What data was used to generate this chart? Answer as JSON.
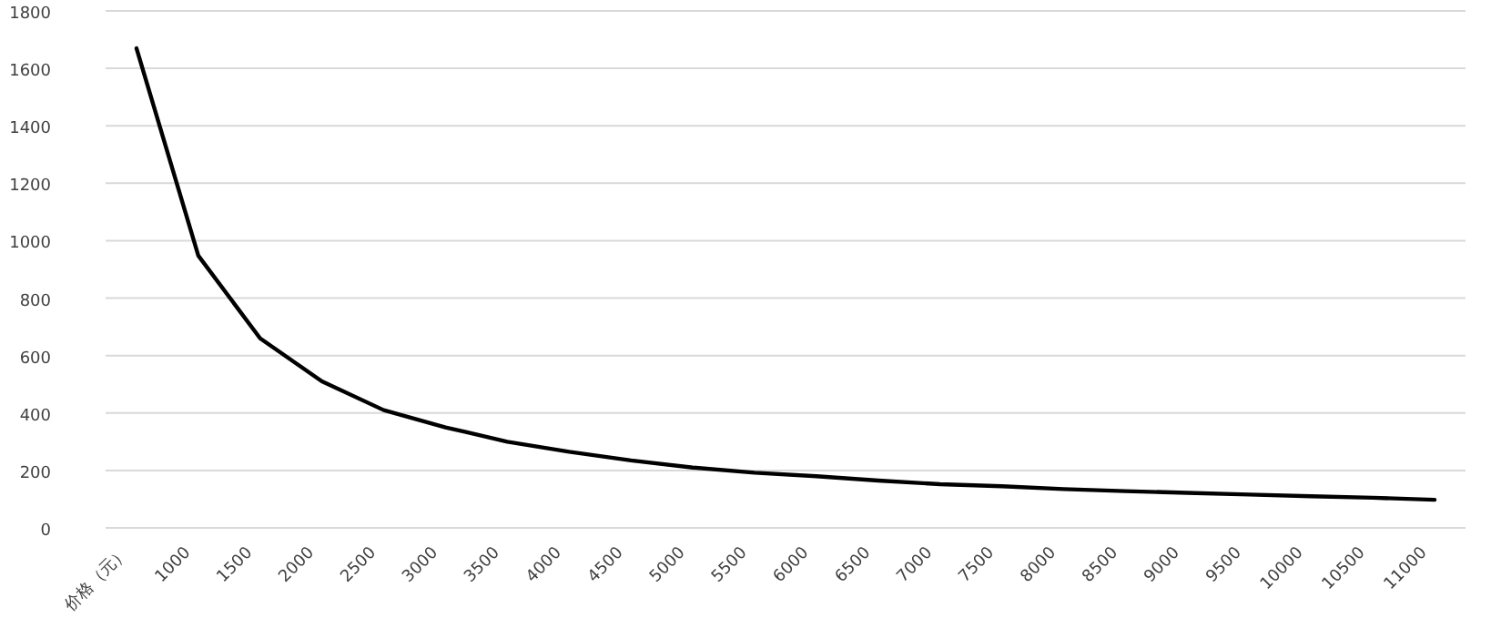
{
  "chart_data": {
    "type": "line",
    "categories": [
      "价格（元）",
      "1000",
      "1500",
      "2000",
      "2500",
      "3000",
      "3500",
      "4000",
      "4500",
      "5000",
      "5500",
      "6000",
      "6500",
      "7000",
      "7500",
      "8000",
      "8500",
      "9000",
      "9500",
      "10000",
      "10500",
      "11000"
    ],
    "series": [
      {
        "color": "#000000",
        "values": [
          1670,
          948,
          660,
          510,
          410,
          350,
          300,
          265,
          235,
          210,
          192,
          180,
          165,
          152,
          145,
          135,
          128,
          122,
          116,
          110,
          105,
          98
        ]
      }
    ],
    "ylim": [
      0,
      1800
    ],
    "yticks": [
      0,
      200,
      400,
      600,
      800,
      1000,
      1200,
      1400,
      1600,
      1800
    ],
    "grid": "y",
    "marker": "none",
    "line_style": "solid"
  }
}
